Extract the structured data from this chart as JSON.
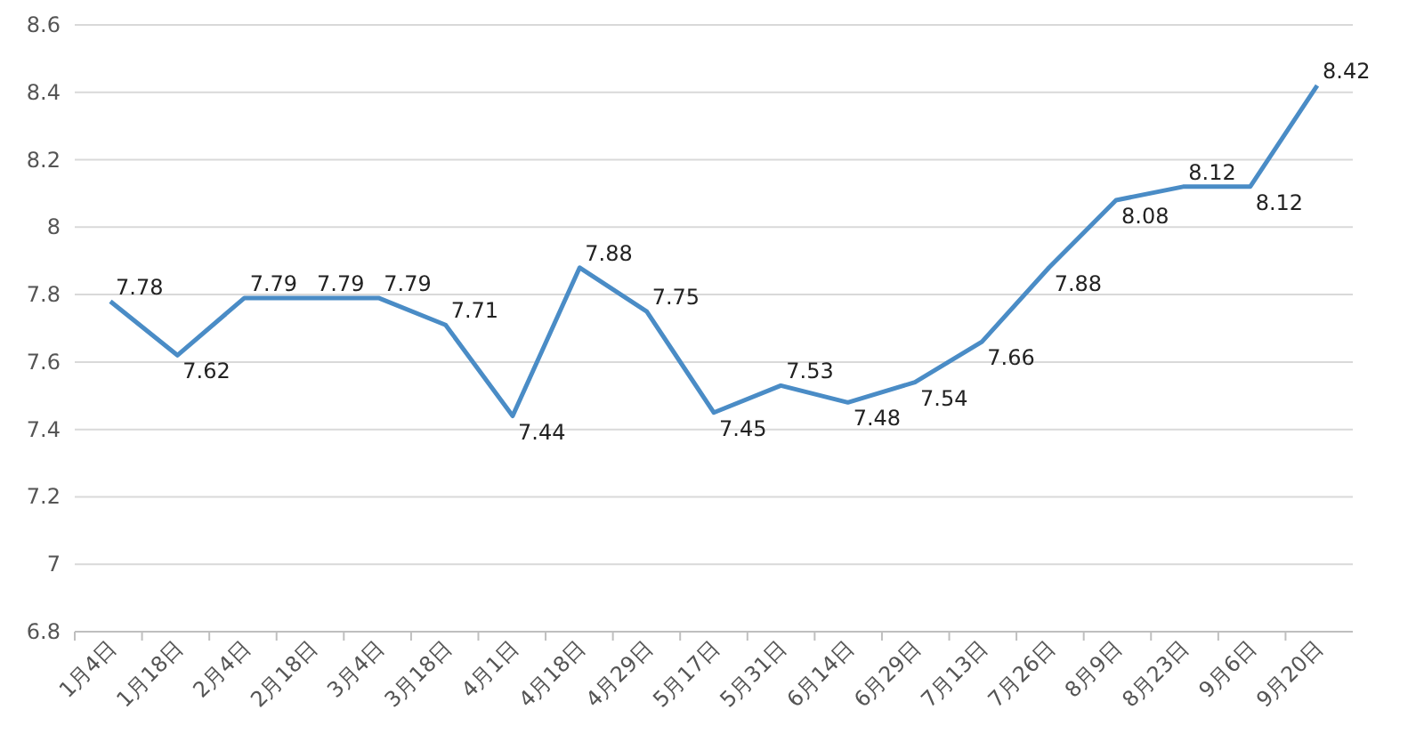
{
  "chart_data": {
    "type": "line",
    "categories": [
      "1月4日",
      "1月18日",
      "2月4日",
      "2月18日",
      "3月4日",
      "3月18日",
      "4月1日",
      "4月18日",
      "4月29日",
      "5月17日",
      "5月31日",
      "6月14日",
      "6月29日",
      "7月13日",
      "7月26日",
      "8月9日",
      "8月23日",
      "9月6日",
      "9月20日"
    ],
    "series": [
      {
        "color": "#4a8cc6",
        "values": [
          7.78,
          7.62,
          7.79,
          7.79,
          7.79,
          7.71,
          7.44,
          7.88,
          7.75,
          7.45,
          7.53,
          7.48,
          7.54,
          7.66,
          7.88,
          8.08,
          8.12,
          8.12,
          8.42
        ]
      }
    ],
    "ylim": [
      6.8,
      8.6
    ],
    "yticks": [
      6.8,
      7,
      7.2,
      7.4,
      7.6,
      7.8,
      8,
      8.2,
      8.4,
      8.6
    ],
    "grid": "y",
    "data_labels": true,
    "marker": "none",
    "line_style": "solid"
  }
}
